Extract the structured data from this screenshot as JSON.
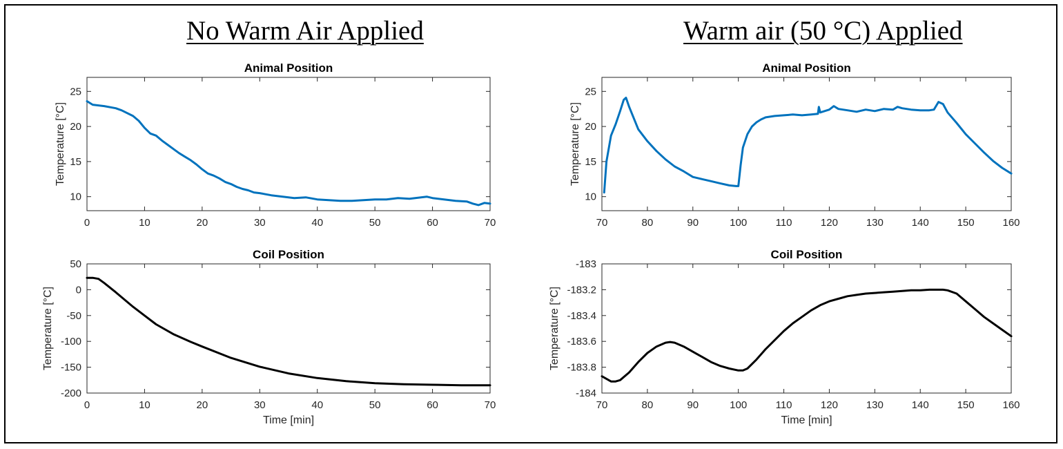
{
  "panels": {
    "left_title": "No Warm Air Applied",
    "right_title": "Warm air (50 °C) Applied"
  },
  "colors": {
    "blue": "#0072BD",
    "black": "#000000"
  },
  "chart_data": [
    {
      "id": "left-animal",
      "type": "line",
      "title": "Animal Position",
      "xlabel": "",
      "ylabel": "Temperature [°C]",
      "xlim": [
        0,
        70
      ],
      "ylim": [
        8,
        27
      ],
      "xticks": [
        0,
        10,
        20,
        30,
        40,
        50,
        60,
        70
      ],
      "yticks": [
        10,
        15,
        20,
        25
      ],
      "tick_labels_y": [
        "10",
        "15",
        "20",
        "25"
      ],
      "color": "blue",
      "series": [
        {
          "name": "Animal Position",
          "x": [
            0,
            1,
            2,
            3,
            5,
            6,
            8,
            9,
            10,
            11,
            12,
            13,
            14,
            15,
            16,
            17,
            18,
            19,
            20,
            21,
            22,
            23,
            24,
            25,
            26,
            27,
            28,
            29,
            30,
            32,
            34,
            36,
            38,
            40,
            42,
            44,
            46,
            48,
            50,
            52,
            54,
            56,
            58,
            59,
            60,
            62,
            64,
            66,
            67,
            68,
            69,
            70
          ],
          "y": [
            23.6,
            23.1,
            23.0,
            22.9,
            22.6,
            22.3,
            21.5,
            20.8,
            19.8,
            19.0,
            18.7,
            18.0,
            17.4,
            16.8,
            16.2,
            15.7,
            15.2,
            14.6,
            13.9,
            13.3,
            13.0,
            12.6,
            12.1,
            11.8,
            11.4,
            11.1,
            10.9,
            10.6,
            10.5,
            10.2,
            10.0,
            9.8,
            9.9,
            9.6,
            9.5,
            9.4,
            9.4,
            9.5,
            9.6,
            9.6,
            9.8,
            9.7,
            9.9,
            10.0,
            9.8,
            9.6,
            9.4,
            9.3,
            9.0,
            8.8,
            9.1,
            9.0
          ]
        }
      ]
    },
    {
      "id": "left-coil",
      "type": "line",
      "title": "Coil Position",
      "xlabel": "Time [min]",
      "ylabel": "Temperature [°C]",
      "xlim": [
        0,
        70
      ],
      "ylim": [
        -200,
        50
      ],
      "xticks": [
        0,
        10,
        20,
        30,
        40,
        50,
        60,
        70
      ],
      "yticks": [
        -200,
        -150,
        -100,
        -50,
        0,
        50
      ],
      "tick_labels_y": [
        "-200",
        "-150",
        "-100",
        "-50",
        "0",
        "50"
      ],
      "color": "black",
      "series": [
        {
          "name": "Coil Position",
          "x": [
            0,
            1,
            2,
            3,
            5,
            8,
            10,
            12,
            15,
            18,
            20,
            25,
            30,
            35,
            40,
            45,
            50,
            55,
            60,
            65,
            70
          ],
          "y": [
            23,
            23,
            21,
            13,
            -5,
            -33,
            -50,
            -67,
            -86,
            -101,
            -110,
            -132,
            -149,
            -162,
            -171,
            -177,
            -181,
            -183,
            -184,
            -185,
            -185
          ]
        }
      ]
    },
    {
      "id": "right-animal",
      "type": "line",
      "title": "Animal Position",
      "xlabel": "",
      "ylabel": "Temperature [°C]",
      "xlim": [
        70,
        160
      ],
      "ylim": [
        8,
        27
      ],
      "xticks": [
        70,
        80,
        90,
        100,
        110,
        120,
        130,
        140,
        150,
        160
      ],
      "yticks": [
        10,
        15,
        20,
        25
      ],
      "tick_labels_y": [
        "10",
        "15",
        "20",
        "25"
      ],
      "color": "blue",
      "series": [
        {
          "name": "Animal Position",
          "x": [
            70.5,
            71,
            72,
            73,
            74,
            74.8,
            75.3,
            76,
            78,
            80,
            82,
            84,
            86,
            88,
            90,
            92,
            94,
            96,
            98,
            99.5,
            100,
            100.5,
            101,
            102,
            103,
            104,
            105,
            106,
            108,
            110,
            112,
            114,
            116,
            117.5,
            117.7,
            118,
            120,
            121,
            122,
            124,
            126,
            128,
            130,
            132,
            134,
            135,
            136,
            138,
            140,
            142,
            143,
            144,
            145,
            146,
            148,
            150,
            152,
            154,
            156,
            158,
            160
          ],
          "y": [
            10.6,
            15.0,
            18.7,
            20.3,
            22.2,
            23.8,
            24.1,
            22.8,
            19.6,
            17.9,
            16.5,
            15.3,
            14.3,
            13.6,
            12.8,
            12.5,
            12.2,
            11.9,
            11.6,
            11.5,
            11.5,
            14.5,
            17.0,
            18.9,
            20.0,
            20.6,
            21.0,
            21.3,
            21.5,
            21.6,
            21.7,
            21.6,
            21.7,
            21.8,
            22.8,
            22.0,
            22.4,
            22.9,
            22.5,
            22.3,
            22.1,
            22.4,
            22.2,
            22.5,
            22.4,
            22.8,
            22.6,
            22.4,
            22.3,
            22.3,
            22.4,
            23.5,
            23.2,
            22.0,
            20.5,
            18.9,
            17.6,
            16.3,
            15.1,
            14.1,
            13.3
          ]
        }
      ]
    },
    {
      "id": "right-coil",
      "type": "line",
      "title": "Coil Position",
      "xlabel": "Time [min]",
      "ylabel": "Temperature [°C]",
      "xlim": [
        70,
        160
      ],
      "ylim": [
        -184,
        -183
      ],
      "xticks": [
        70,
        80,
        90,
        100,
        110,
        120,
        130,
        140,
        150,
        160
      ],
      "yticks": [
        -184,
        -183.8,
        -183.6,
        -183.4,
        -183.2,
        -183
      ],
      "tick_labels_y": [
        "-184",
        "-183.8",
        "-183.6",
        "-183.4",
        "-183.2",
        "-183"
      ],
      "color": "black",
      "series": [
        {
          "name": "Coil Position",
          "x": [
            70,
            71,
            72,
            73,
            74,
            76,
            78,
            80,
            82,
            84,
            85,
            86,
            88,
            90,
            92,
            94,
            96,
            98,
            100,
            101,
            102,
            104,
            106,
            108,
            110,
            112,
            114,
            116,
            118,
            120,
            122,
            124,
            126,
            128,
            130,
            132,
            134,
            136,
            138,
            140,
            142,
            144,
            145,
            146,
            148,
            150,
            152,
            154,
            156,
            158,
            160
          ],
          "y": [
            -183.87,
            -183.89,
            -183.91,
            -183.91,
            -183.9,
            -183.84,
            -183.76,
            -183.69,
            -183.64,
            -183.61,
            -183.605,
            -183.61,
            -183.64,
            -183.68,
            -183.72,
            -183.76,
            -183.79,
            -183.81,
            -183.825,
            -183.825,
            -183.81,
            -183.74,
            -183.66,
            -183.59,
            -183.52,
            -183.46,
            -183.41,
            -183.36,
            -183.32,
            -183.29,
            -183.27,
            -183.25,
            -183.24,
            -183.23,
            -183.225,
            -183.22,
            -183.215,
            -183.21,
            -183.205,
            -183.205,
            -183.2,
            -183.2,
            -183.2,
            -183.205,
            -183.23,
            -183.29,
            -183.35,
            -183.41,
            -183.46,
            -183.51,
            -183.56
          ]
        }
      ]
    }
  ]
}
